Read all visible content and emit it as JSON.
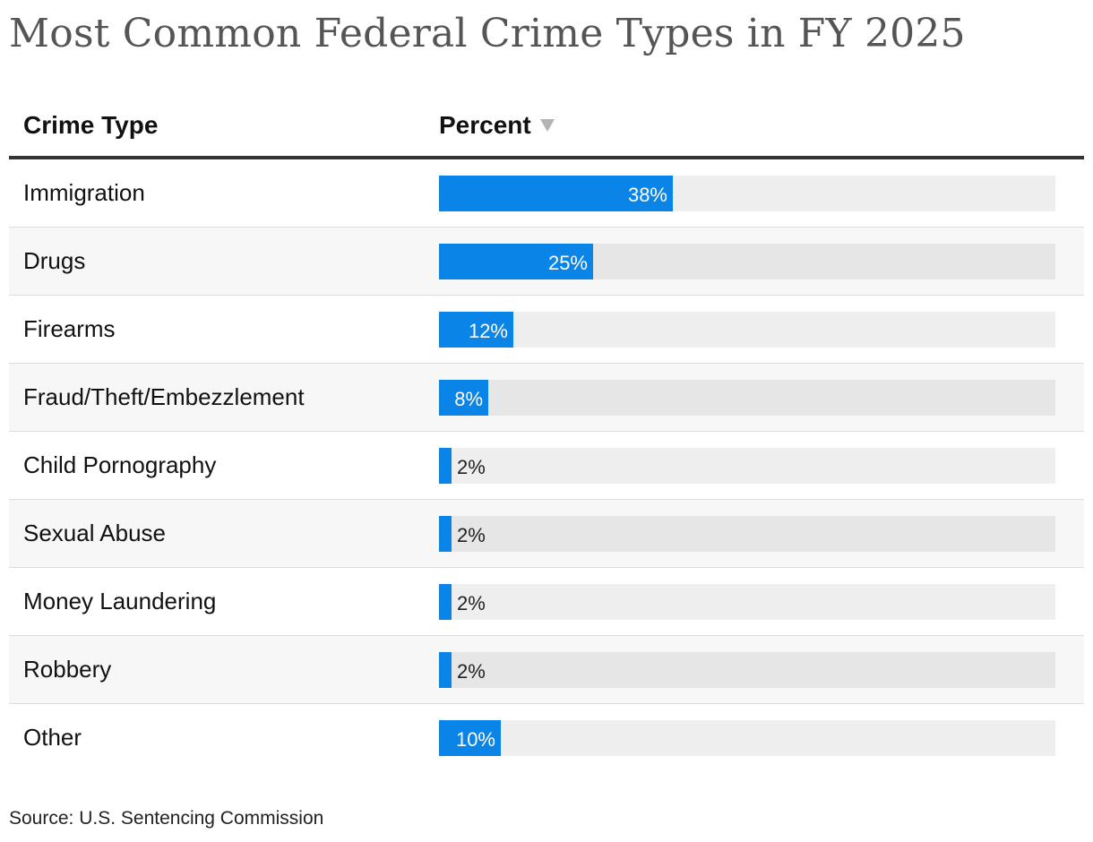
{
  "title": "Most Common Federal Crime Types in FY 2025",
  "header": {
    "crime_type": "Crime Type",
    "percent": "Percent"
  },
  "icons": {
    "sort": "sort-descending-triangle-icon"
  },
  "colors": {
    "bar": "#0a84e6",
    "track": "#eeeeee",
    "title": "#555555"
  },
  "source": "Source: U.S. Sentencing Commission",
  "chart_data": {
    "type": "bar",
    "orientation": "horizontal",
    "categories": [
      "Immigration",
      "Drugs",
      "Firearms",
      "Fraud/Theft/Embezzlement",
      "Child Pornography",
      "Sexual Abuse",
      "Money Laundering",
      "Robbery",
      "Other"
    ],
    "values": [
      38,
      25,
      12,
      8,
      2,
      2,
      2,
      2,
      10
    ],
    "labels": [
      "38%",
      "25%",
      "12%",
      "8%",
      "2%",
      "2%",
      "2%",
      "2%",
      "10%"
    ],
    "xlim": [
      0,
      100
    ],
    "unit": "%",
    "title": "Most Common Federal Crime Types in FY 2025",
    "xlabel": "Percent",
    "ylabel": "Crime Type"
  }
}
